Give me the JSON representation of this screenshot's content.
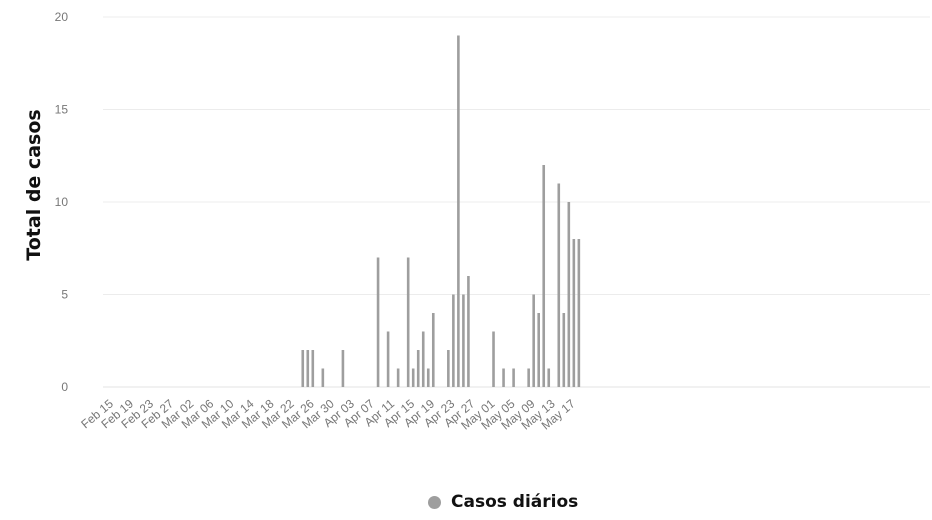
{
  "chart_data": {
    "type": "bar",
    "ylabel": "Total de casos",
    "xlabel": "",
    "ylim": [
      0,
      20
    ],
    "yticks": [
      0,
      5,
      10,
      15,
      20
    ],
    "grid": true,
    "legend_position": "bottom",
    "x_tick_labels": [
      "Feb 15",
      "Feb 19",
      "Feb 23",
      "Feb 27",
      "Mar 02",
      "Mar 06",
      "Mar 10",
      "Mar 14",
      "Mar 18",
      "Mar 22",
      "Mar 26",
      "Mar 30",
      "Apr 03",
      "Apr 07",
      "Apr 11",
      "Apr 15",
      "Apr 19",
      "Apr 23",
      "Apr 27",
      "May 01",
      "May 05",
      "May 09",
      "May 13",
      "May 17"
    ],
    "series": [
      {
        "name": "Casos diários",
        "color": "#9e9e9e",
        "points": [
          {
            "x": "Mar 24",
            "y": 2
          },
          {
            "x": "Mar 25",
            "y": 2
          },
          {
            "x": "Mar 26",
            "y": 2
          },
          {
            "x": "Mar 28",
            "y": 1
          },
          {
            "x": "Apr 01",
            "y": 2
          },
          {
            "x": "Apr 08",
            "y": 7
          },
          {
            "x": "Apr 10",
            "y": 3
          },
          {
            "x": "Apr 12",
            "y": 1
          },
          {
            "x": "Apr 14",
            "y": 7
          },
          {
            "x": "Apr 15",
            "y": 1
          },
          {
            "x": "Apr 16",
            "y": 2
          },
          {
            "x": "Apr 17",
            "y": 3
          },
          {
            "x": "Apr 18",
            "y": 1
          },
          {
            "x": "Apr 19",
            "y": 4
          },
          {
            "x": "Apr 22",
            "y": 2
          },
          {
            "x": "Apr 23",
            "y": 5
          },
          {
            "x": "Apr 24",
            "y": 19
          },
          {
            "x": "Apr 25",
            "y": 5
          },
          {
            "x": "Apr 26",
            "y": 6
          },
          {
            "x": "May 01",
            "y": 3
          },
          {
            "x": "May 03",
            "y": 1
          },
          {
            "x": "May 05",
            "y": 1
          },
          {
            "x": "May 08",
            "y": 1
          },
          {
            "x": "May 09",
            "y": 5
          },
          {
            "x": "May 10",
            "y": 4
          },
          {
            "x": "May 11",
            "y": 12
          },
          {
            "x": "May 12",
            "y": 1
          },
          {
            "x": "May 14",
            "y": 11
          },
          {
            "x": "May 15",
            "y": 4
          },
          {
            "x": "May 16",
            "y": 10
          },
          {
            "x": "May 17",
            "y": 8
          },
          {
            "x": "May 18",
            "y": 8
          }
        ]
      }
    ]
  }
}
